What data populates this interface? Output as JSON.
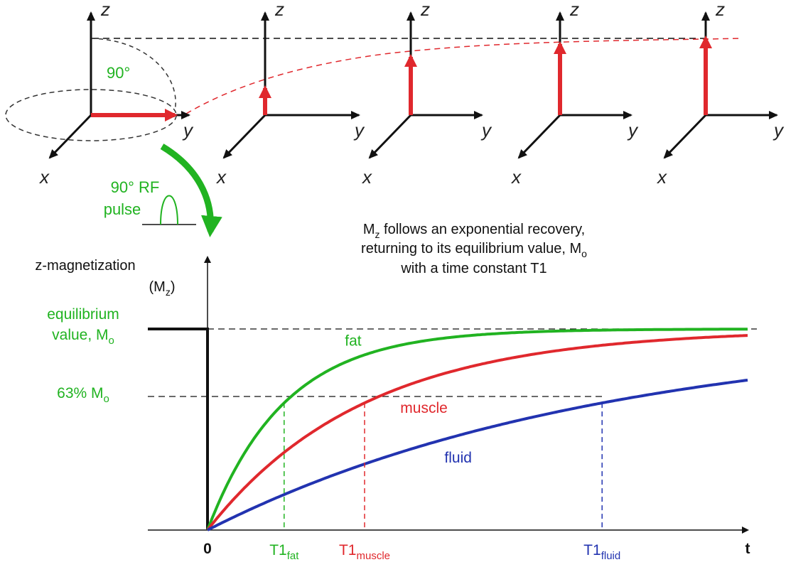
{
  "axes_labels": {
    "x": "x",
    "y": "y",
    "z": "z"
  },
  "pulse": {
    "angle_label": "90°",
    "rf_line1": "90° RF",
    "rf_line2": "pulse"
  },
  "recovery_note": {
    "line1_prefix": "M",
    "line1_sub": "z",
    "line1_rest": " follows an exponential recovery,",
    "line2_prefix": "returning to its equilibrium value, M",
    "line2_sub": "o",
    "line3": "with a time constant T1"
  },
  "graph": {
    "ylabel_line1": "z-magnetization",
    "ylabel_line2_pre": "(M",
    "ylabel_line2_sub": "z",
    "ylabel_line2_post": ")",
    "equilibrium_line1": "equilibrium",
    "equilibrium_line2": "value, M",
    "equilibrium_sub": "o",
    "pct63": "63% M",
    "pct63_sub": "o",
    "origin_label": "0",
    "t_label": "t"
  },
  "chart_data": {
    "type": "line",
    "description_free": true,
    "xlabel": "t",
    "ylabel": "z-magnetization (Mz)",
    "reference_levels": [
      {
        "label": "equilibrium value, Mo",
        "y": 1.0
      },
      {
        "label": "63% Mo",
        "y": 0.632
      }
    ],
    "series": [
      {
        "name": "fat",
        "T1_label": "T1",
        "T1_sub": "fat",
        "T1": 1.0,
        "color": "#21b321"
      },
      {
        "name": "muscle",
        "T1_label": "T1",
        "T1_sub": "muscle",
        "T1": 2.05,
        "color": "#e0282d"
      },
      {
        "name": "fluid",
        "T1_label": "T1",
        "T1_sub": "fluid",
        "T1": 5.15,
        "color": "#2233b0"
      }
    ],
    "model": "Mz(t) = Mo (1 - exp(-t/T1))",
    "xlim": [
      0,
      7.05
    ],
    "ylim": [
      0,
      1
    ]
  },
  "colors": {
    "green": "#21b321",
    "red": "#e0282d",
    "blue": "#2233b0",
    "black": "#111111"
  }
}
